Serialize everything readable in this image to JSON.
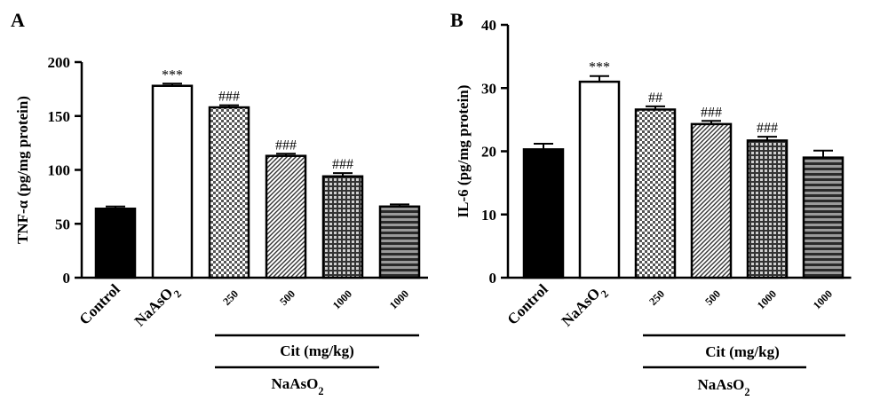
{
  "panels": [
    {
      "label": "A",
      "chart_data": {
        "type": "bar",
        "ylabel": "TNF-α (pg/mg protein)",
        "ylim": [
          0,
          200
        ],
        "yticks": [
          0,
          50,
          100,
          150,
          200
        ],
        "categories": [
          "Control",
          "NaAsO2",
          "250",
          "500",
          "1000",
          "1000"
        ],
        "values": [
          64,
          178,
          158,
          113,
          94,
          66
        ],
        "errors": [
          2,
          2,
          2,
          2,
          3,
          2
        ],
        "annotations": [
          "",
          "***",
          "###",
          "###",
          "###",
          ""
        ],
        "bracket_cit": "Cit (mg/kg)",
        "bracket_naaso2": "NaAsO2"
      }
    },
    {
      "label": "B",
      "chart_data": {
        "type": "bar",
        "ylabel": "IL-6 (pg/mg protein)",
        "ylim": [
          0,
          40
        ],
        "yticks": [
          0,
          10,
          20,
          30,
          40
        ],
        "categories": [
          "Control",
          "NaAsO2",
          "250",
          "500",
          "1000",
          "1000"
        ],
        "values": [
          20.3,
          31.0,
          26.6,
          24.3,
          21.7,
          19.0
        ],
        "errors": [
          0.9,
          0.9,
          0.5,
          0.5,
          0.6,
          1.1
        ],
        "annotations": [
          "",
          "***",
          "##",
          "###",
          "###",
          ""
        ],
        "bracket_cit": "Cit (mg/kg)",
        "bracket_naaso2": "NaAsO2"
      }
    }
  ]
}
